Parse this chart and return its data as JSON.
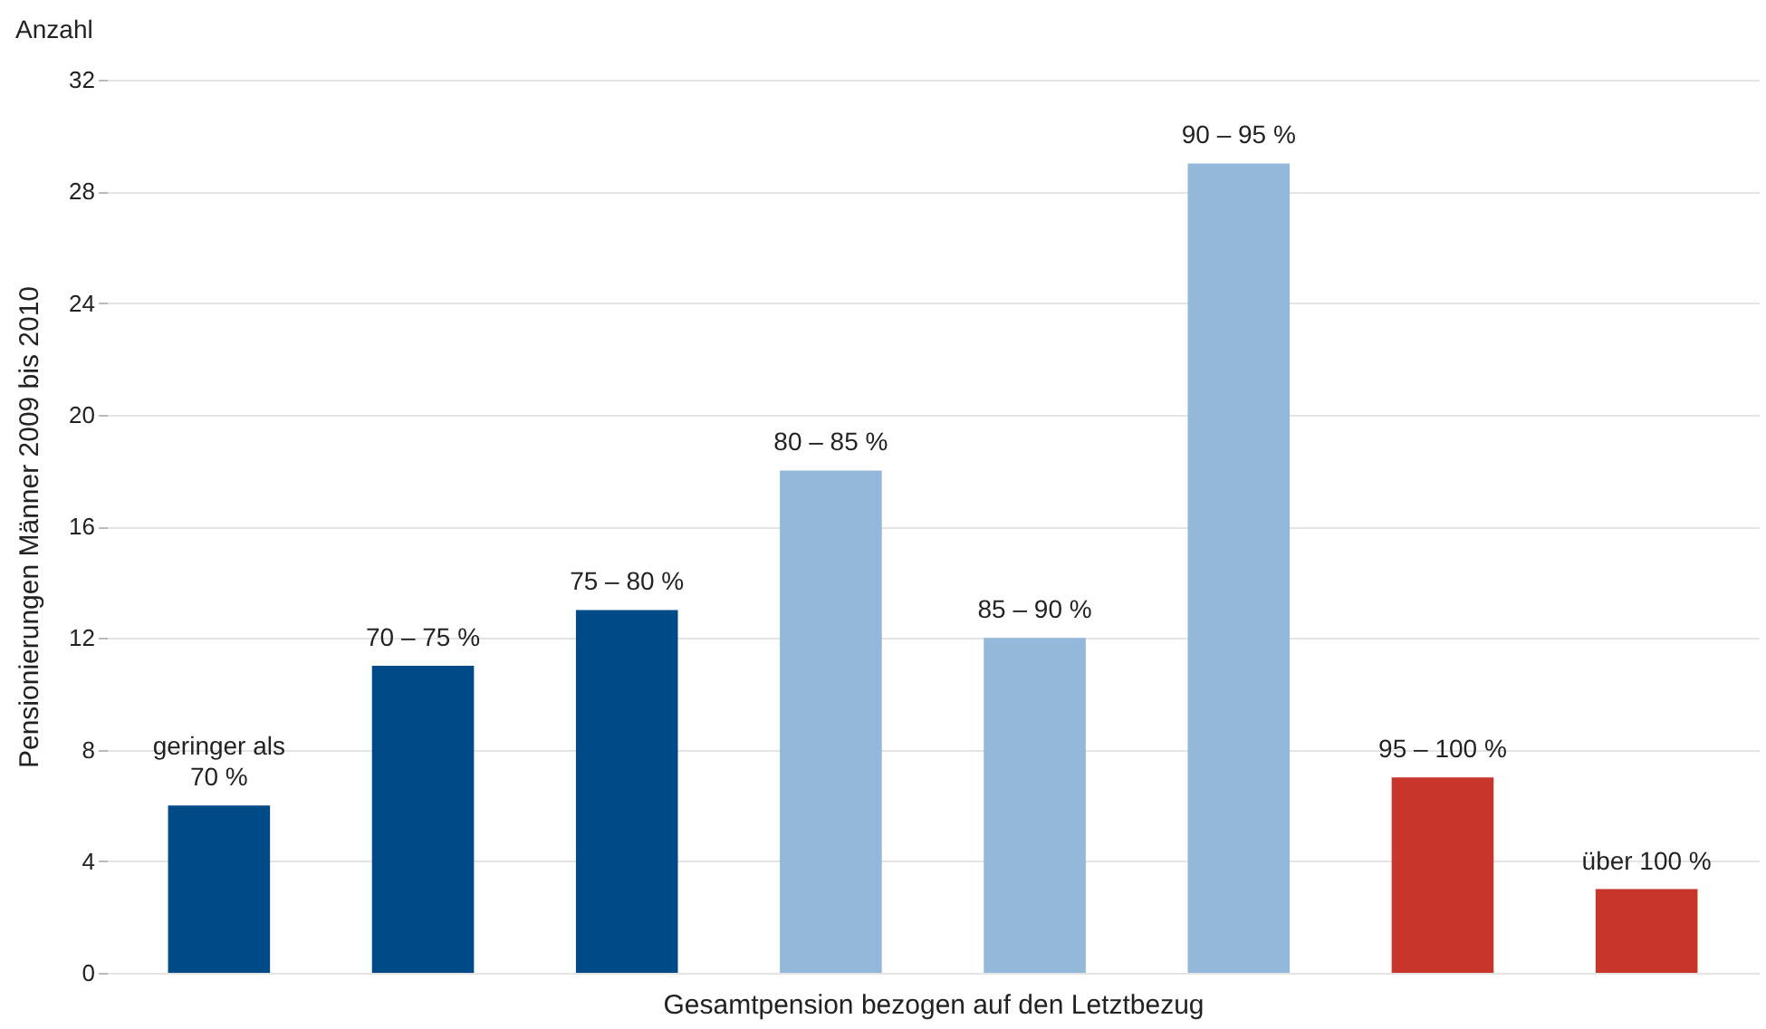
{
  "chart_data": {
    "type": "bar",
    "xlabel": "Gesamtpension bezogen auf den Letztbezug",
    "ylabel": "Pensionierungen Männer 2009 bis 2010",
    "annotations": [
      "Anzahl"
    ],
    "categories": [
      "geringer als\n70 %",
      "70 – 75 %",
      "75 – 80 %",
      "80 – 85 %",
      "85 – 90 %",
      "90 – 95 %",
      "95 – 100 %",
      "über 100 %"
    ],
    "values": [
      6,
      11,
      13,
      18,
      12,
      29,
      7,
      3
    ],
    "colors": [
      "#004a87",
      "#004a87",
      "#004a87",
      "#93b8d9",
      "#93b8d9",
      "#93b8d9",
      "#c8352a",
      "#c8352a"
    ],
    "ylim": [
      0,
      32
    ],
    "yticks": [
      0,
      4,
      8,
      12,
      16,
      20,
      24,
      28,
      32
    ],
    "grid": "y"
  }
}
